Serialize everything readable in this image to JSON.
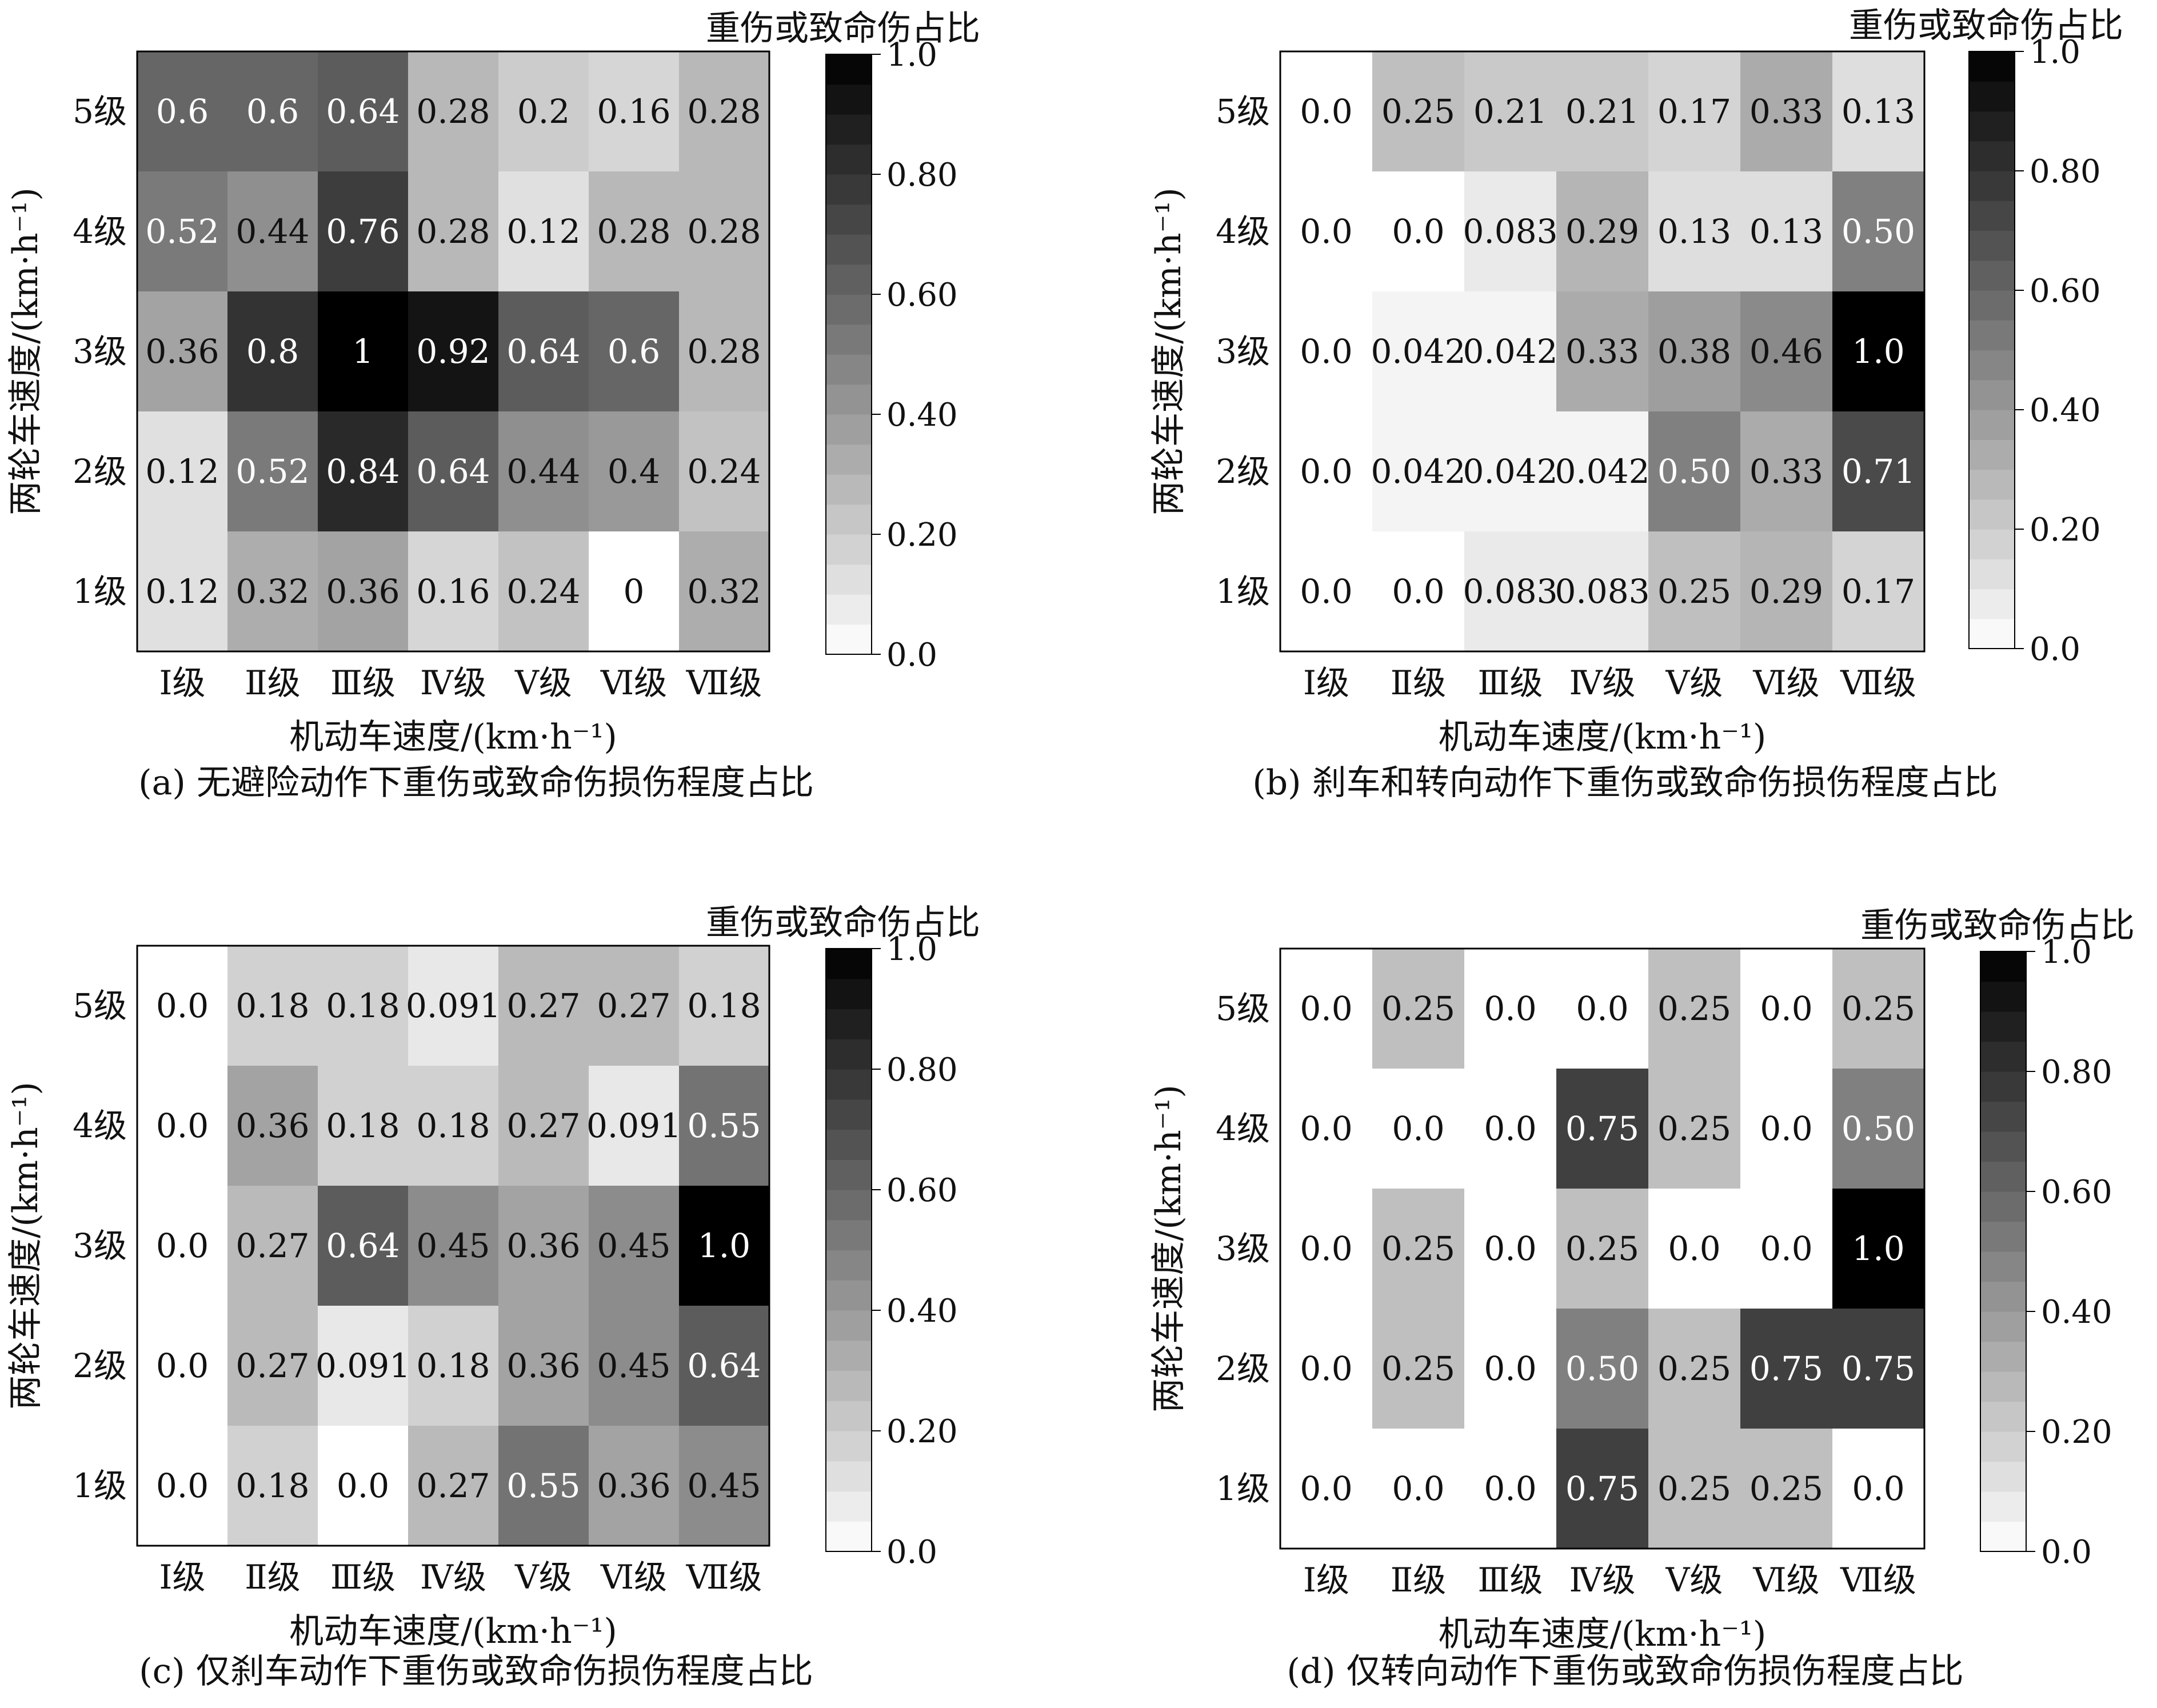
{
  "chart_data": [
    {
      "type": "heatmap",
      "caption": "(a) 无避险动作下重伤或致命伤损伤程度占比",
      "xlabel": "机动车速度/(km·h⁻¹)",
      "ylabel": "两轮车速度/(km·h⁻¹)",
      "x_categories": [
        "Ⅰ级",
        "Ⅱ级",
        "Ⅲ级",
        "Ⅳ级",
        "Ⅴ级",
        "Ⅵ级",
        "Ⅶ级"
      ],
      "y_categories": [
        "5级",
        "4级",
        "3级",
        "2级",
        "1级"
      ],
      "values": [
        [
          0.6,
          0.6,
          0.64,
          0.28,
          0.2,
          0.16,
          0.28
        ],
        [
          0.52,
          0.44,
          0.76,
          0.28,
          0.12,
          0.28,
          0.28
        ],
        [
          0.36,
          0.8,
          1,
          0.92,
          0.64,
          0.6,
          0.28
        ],
        [
          0.12,
          0.52,
          0.84,
          0.64,
          0.44,
          0.4,
          0.24
        ],
        [
          0.12,
          0.32,
          0.36,
          0.16,
          0.24,
          0,
          0.32
        ]
      ],
      "value_labels": [
        [
          "0.6",
          "0.6",
          "0.64",
          "0.28",
          "0.2",
          "0.16",
          "0.28"
        ],
        [
          "0.52",
          "0.44",
          "0.76",
          "0.28",
          "0.12",
          "0.28",
          "0.28"
        ],
        [
          "0.36",
          "0.8",
          "1",
          "0.92",
          "0.64",
          "0.6",
          "0.28"
        ],
        [
          "0.12",
          "0.52",
          "0.84",
          "0.64",
          "0.44",
          "0.4",
          "0.24"
        ],
        [
          "0.12",
          "0.32",
          "0.36",
          "0.16",
          "0.24",
          "0",
          "0.32"
        ]
      ],
      "colorbar": {
        "title": "重伤或致命伤占比",
        "range": [
          0,
          1
        ],
        "ticks": [
          0,
          0.2,
          0.4,
          0.6,
          0.8,
          1.0
        ],
        "tick_labels": [
          "0.0",
          "0.20",
          "0.40",
          "0.60",
          "0.80",
          "1.0"
        ],
        "colormap": "gray-reversed"
      }
    },
    {
      "type": "heatmap",
      "caption": "(b) 刹车和转向动作下重伤或致命伤损伤程度占比",
      "xlabel": "机动车速度/(km·h⁻¹)",
      "ylabel": "两轮车速度/(km·h⁻¹)",
      "x_categories": [
        "Ⅰ级",
        "Ⅱ级",
        "Ⅲ级",
        "Ⅳ级",
        "Ⅴ级",
        "Ⅵ级",
        "Ⅶ级"
      ],
      "y_categories": [
        "5级",
        "4级",
        "3级",
        "2级",
        "1级"
      ],
      "values": [
        [
          0.0,
          0.25,
          0.21,
          0.21,
          0.17,
          0.33,
          0.13
        ],
        [
          0.0,
          0.0,
          0.083,
          0.29,
          0.13,
          0.13,
          0.5
        ],
        [
          0.0,
          0.042,
          0.042,
          0.33,
          0.38,
          0.46,
          1.0
        ],
        [
          0.0,
          0.042,
          0.042,
          0.042,
          0.5,
          0.33,
          0.71
        ],
        [
          0.0,
          0.0,
          0.083,
          0.083,
          0.25,
          0.29,
          0.17
        ]
      ],
      "value_labels": [
        [
          "0.0",
          "0.25",
          "0.21",
          "0.21",
          "0.17",
          "0.33",
          "0.13"
        ],
        [
          "0.0",
          "0.0",
          "0.083",
          "0.29",
          "0.13",
          "0.13",
          "0.50"
        ],
        [
          "0.0",
          "0.042",
          "0.042",
          "0.33",
          "0.38",
          "0.46",
          "1.0"
        ],
        [
          "0.0",
          "0.042",
          "0.042",
          "0.042",
          "0.50",
          "0.33",
          "0.71"
        ],
        [
          "0.0",
          "0.0",
          "0.083",
          "0.083",
          "0.25",
          "0.29",
          "0.17"
        ]
      ],
      "colorbar": {
        "title": "重伤或致命伤占比",
        "range": [
          0,
          1
        ],
        "ticks": [
          0,
          0.2,
          0.4,
          0.6,
          0.8,
          1.0
        ],
        "tick_labels": [
          "0.0",
          "0.20",
          "0.40",
          "0.60",
          "0.80",
          "1.0"
        ],
        "colormap": "gray-reversed"
      }
    },
    {
      "type": "heatmap",
      "caption": "(c) 仅刹车动作下重伤或致命伤损伤程度占比",
      "xlabel": "机动车速度/(km·h⁻¹)",
      "ylabel": "两轮车速度/(km·h⁻¹)",
      "x_categories": [
        "Ⅰ级",
        "Ⅱ级",
        "Ⅲ级",
        "Ⅳ级",
        "Ⅴ级",
        "Ⅵ级",
        "Ⅶ级"
      ],
      "y_categories": [
        "5级",
        "4级",
        "3级",
        "2级",
        "1级"
      ],
      "values": [
        [
          0.0,
          0.18,
          0.18,
          0.091,
          0.27,
          0.27,
          0.18
        ],
        [
          0.0,
          0.36,
          0.18,
          0.18,
          0.27,
          0.091,
          0.55
        ],
        [
          0.0,
          0.27,
          0.64,
          0.45,
          0.36,
          0.45,
          1.0
        ],
        [
          0.0,
          0.27,
          0.091,
          0.18,
          0.36,
          0.45,
          0.64
        ],
        [
          0.0,
          0.18,
          0.0,
          0.27,
          0.55,
          0.36,
          0.45
        ]
      ],
      "value_labels": [
        [
          "0.0",
          "0.18",
          "0.18",
          "0.091",
          "0.27",
          "0.27",
          "0.18"
        ],
        [
          "0.0",
          "0.36",
          "0.18",
          "0.18",
          "0.27",
          "0.091",
          "0.55"
        ],
        [
          "0.0",
          "0.27",
          "0.64",
          "0.45",
          "0.36",
          "0.45",
          "1.0"
        ],
        [
          "0.0",
          "0.27",
          "0.091",
          "0.18",
          "0.36",
          "0.45",
          "0.64"
        ],
        [
          "0.0",
          "0.18",
          "0.0",
          "0.27",
          "0.55",
          "0.36",
          "0.45"
        ]
      ],
      "colorbar": {
        "title": "重伤或致命伤占比",
        "range": [
          0,
          1
        ],
        "ticks": [
          0,
          0.2,
          0.4,
          0.6,
          0.8,
          1.0
        ],
        "tick_labels": [
          "0.0",
          "0.20",
          "0.40",
          "0.60",
          "0.80",
          "1.0"
        ],
        "colormap": "gray-reversed"
      }
    },
    {
      "type": "heatmap",
      "caption": "(d) 仅转向动作下重伤或致命伤损伤程度占比",
      "xlabel": "机动车速度/(km·h⁻¹)",
      "ylabel": "两轮车速度/(km·h⁻¹)",
      "x_categories": [
        "Ⅰ级",
        "Ⅱ级",
        "Ⅲ级",
        "Ⅳ级",
        "Ⅴ级",
        "Ⅵ级",
        "Ⅶ级"
      ],
      "y_categories": [
        "5级",
        "4级",
        "3级",
        "2级",
        "1级"
      ],
      "values": [
        [
          0.0,
          0.25,
          0.0,
          0.0,
          0.25,
          0.0,
          0.25
        ],
        [
          0.0,
          0.0,
          0.0,
          0.75,
          0.25,
          0.0,
          0.5
        ],
        [
          0.0,
          0.25,
          0.0,
          0.25,
          0.0,
          0.0,
          1.0
        ],
        [
          0.0,
          0.25,
          0.0,
          0.5,
          0.25,
          0.75,
          0.75
        ],
        [
          0.0,
          0.0,
          0.0,
          0.75,
          0.25,
          0.25,
          0.0
        ]
      ],
      "value_labels": [
        [
          "0.0",
          "0.25",
          "0.0",
          "0.0",
          "0.25",
          "0.0",
          "0.25"
        ],
        [
          "0.0",
          "0.0",
          "0.0",
          "0.75",
          "0.25",
          "0.0",
          "0.50"
        ],
        [
          "0.0",
          "0.25",
          "0.0",
          "0.25",
          "0.0",
          "0.0",
          "1.0"
        ],
        [
          "0.0",
          "0.25",
          "0.0",
          "0.50",
          "0.25",
          "0.75",
          "0.75"
        ],
        [
          "0.0",
          "0.0",
          "0.0",
          "0.75",
          "0.25",
          "0.25",
          "0.0"
        ]
      ],
      "colorbar": {
        "title": "重伤或致命伤占比",
        "range": [
          0,
          1
        ],
        "ticks": [
          0,
          0.2,
          0.4,
          0.6,
          0.8,
          1.0
        ],
        "tick_labels": [
          "0.0",
          "0.20",
          "0.40",
          "0.60",
          "0.80",
          "1.0"
        ],
        "colormap": "gray-reversed"
      }
    }
  ]
}
